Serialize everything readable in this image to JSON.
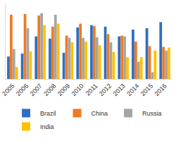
{
  "chart_data": {
    "type": "bar",
    "categories": [
      "2005",
      "2006",
      "2007",
      "2008",
      "2009",
      "2010",
      "2011",
      "2012",
      "2013",
      "2014",
      "2015",
      "2016"
    ],
    "series": [
      {
        "name": "Brazil",
        "color": "#2e6fc0",
        "values": [
          3.0,
          3.4,
          5.7,
          5.4,
          3.5,
          6.9,
          7.2,
          7.0,
          5.7,
          6.6,
          6.8,
          7.6
        ]
      },
      {
        "name": "China",
        "color": "#f07a22",
        "values": [
          8.6,
          8.7,
          8.5,
          7.0,
          5.8,
          7.4,
          7.1,
          6.0,
          5.8,
          5.0,
          4.4,
          4.3
        ]
      },
      {
        "name": "Russia",
        "color": "#a5a5a5",
        "values": [
          4.0,
          6.8,
          8.8,
          8.6,
          5.5,
          5.5,
          5.6,
          4.9,
          5.7,
          2.3,
          0.9,
          3.8
        ]
      },
      {
        "name": "India",
        "color": "#ffc000",
        "values": [
          1.6,
          3.7,
          7.2,
          7.4,
          4.9,
          5.0,
          4.5,
          3.6,
          2.9,
          2.9,
          3.8,
          4.2
        ]
      }
    ],
    "ylim": [
      0,
      10
    ],
    "tick_labels": "x",
    "grid": false,
    "legend": "bottom"
  }
}
